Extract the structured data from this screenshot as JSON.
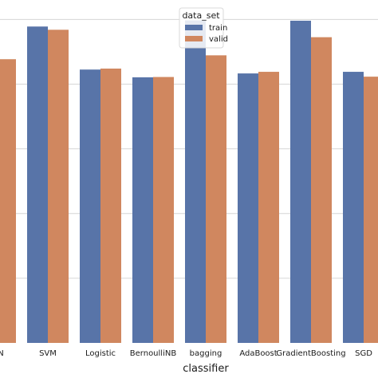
{
  "chart_data": {
    "type": "bar",
    "title": "",
    "xlabel": "classifier",
    "ylabel": "",
    "categories": [
      "KNN",
      "SVM",
      "Logistic",
      "BernoulliNB",
      "bagging",
      "AdaBoost",
      "GradientBoosting",
      "SGD"
    ],
    "series": [
      {
        "name": "train",
        "color": "#5874a8",
        "values": [
          0.92,
          0.978,
          0.845,
          0.821,
          0.997,
          0.833,
          0.996,
          0.838
        ]
      },
      {
        "name": "valid",
        "color": "#d0875f",
        "values": [
          0.877,
          0.968,
          0.848,
          0.822,
          0.889,
          0.838,
          0.945,
          0.823
        ]
      }
    ],
    "ylim": [
      0.0,
      1.06
    ],
    "grid": true,
    "legend": {
      "title": "data_set",
      "placement": "top-center"
    }
  }
}
